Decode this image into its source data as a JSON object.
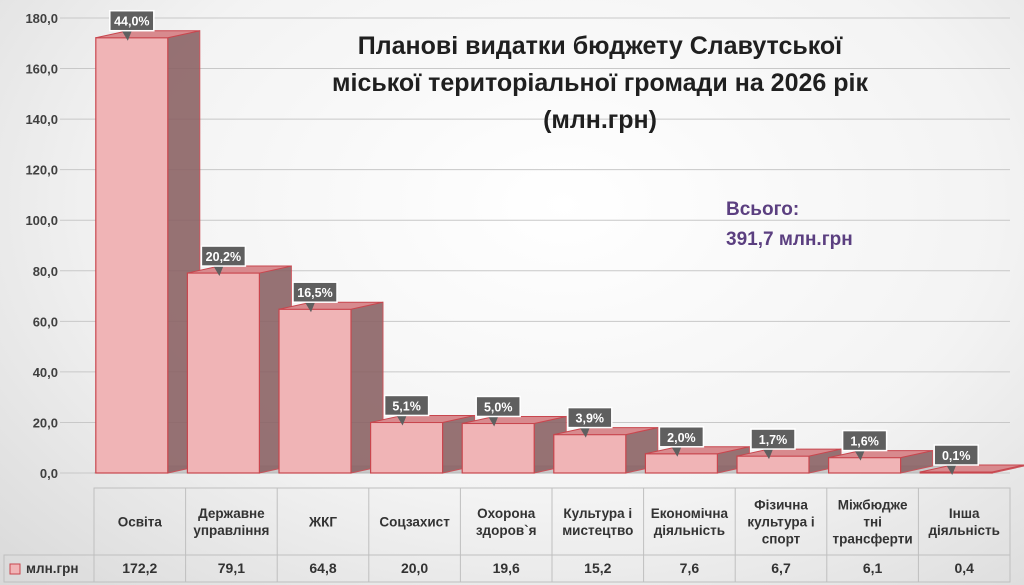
{
  "chart_data": {
    "type": "bar",
    "title": "Планові видатки бюджету Славутської міської територіальної громади на 2026 рік (млн.грн)",
    "title_lines": [
      "Планові видатки бюджету Славутської",
      "міської територіальної громади на 2026 рік",
      "(млн.грн)"
    ],
    "total_label": "Всього:",
    "total_value": "391,7 млн.грн",
    "categories": [
      [
        "Освіта"
      ],
      [
        "Державне",
        "управління"
      ],
      [
        "ЖКГ"
      ],
      [
        "Соцзахист"
      ],
      [
        "Охорона",
        "здоров`я"
      ],
      [
        "Культура і",
        "мистецтво"
      ],
      [
        "Економічна",
        "діяльність"
      ],
      [
        "Фізична",
        "культура і",
        "спорт"
      ],
      [
        "Міжбюдже",
        "тні",
        "трансферти"
      ],
      [
        "Інша",
        "діяльність"
      ]
    ],
    "series": [
      {
        "name": "млн.грн",
        "values": [
          172.2,
          79.1,
          64.8,
          20.0,
          19.6,
          15.2,
          7.6,
          6.7,
          6.1,
          0.4
        ],
        "value_labels": [
          "172,2",
          "79,1",
          "64,8",
          "20,0",
          "19,6",
          "15,2",
          "7,6",
          "6,7",
          "6,1",
          "0,4"
        ],
        "shares": [
          "44,0%",
          "20,2%",
          "16,5%",
          "5,1%",
          "5,0%",
          "3,9%",
          "2,0%",
          "1,7%",
          "1,6%",
          "0,1%"
        ]
      }
    ],
    "ylim": [
      0,
      180
    ],
    "yticks": [
      "0,0",
      "20,0",
      "40,0",
      "60,0",
      "80,0",
      "100,0",
      "120,0",
      "140,0",
      "160,0",
      "180,0"
    ],
    "grid": true,
    "legend": "data-table",
    "colors": {
      "bar_front": "#f0b4b6",
      "bar_side": "#8c6466",
      "bar_top": "#d88a8e",
      "bar_stroke": "#c8464e",
      "grid": "#c8c8c8",
      "share_box": "#5f5f5f",
      "total_text": "#5b3f80"
    }
  }
}
